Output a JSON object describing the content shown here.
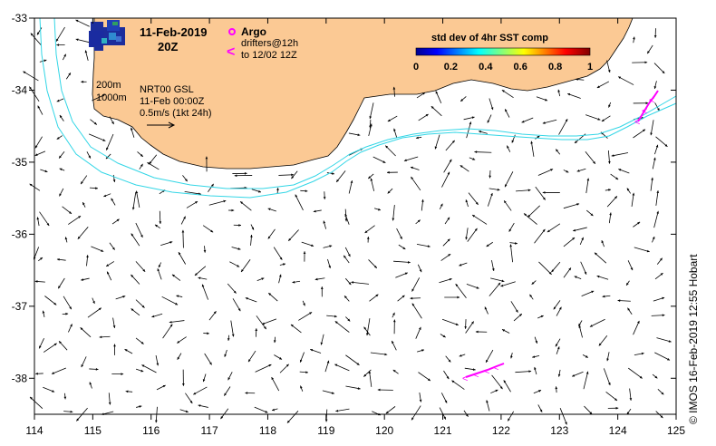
{
  "map": {
    "title_date": "11-Feb-2019",
    "title_time": "20Z",
    "legend": {
      "argo_label": "Argo",
      "drifters_label": "drifters@12h",
      "drifters_to": "to 12/02 12Z"
    },
    "colorbar": {
      "title": "std dev of 4hr SST comp",
      "ticks": [
        "0",
        "0.2",
        "0.4",
        "0.6",
        "0.8",
        "1"
      ],
      "range": [
        0,
        1
      ]
    },
    "contours": {
      "label_200": "200m",
      "label_1000": "1000m"
    },
    "product": {
      "line1": "NRT00 GSL",
      "line2": "11-Feb 00:00Z",
      "line3": "0.5m/s (1kt 24h)"
    },
    "x_axis": {
      "range": [
        114,
        125
      ],
      "ticks": [
        "114",
        "115",
        "116",
        "117",
        "118",
        "119",
        "120",
        "121",
        "122",
        "123",
        "124",
        "125"
      ]
    },
    "y_axis": {
      "range": [
        -38.5,
        -33
      ],
      "ticks": [
        "-33",
        "-34",
        "-35",
        "-36",
        "-37",
        "-38"
      ]
    },
    "credit": "© IMOS 16-Feb-2019 12:55 Hobart",
    "colors": {
      "land": "#fbc994",
      "isobath": "#33d6e6",
      "drifter": "#ff00ff",
      "arrow": "#000000"
    }
  }
}
